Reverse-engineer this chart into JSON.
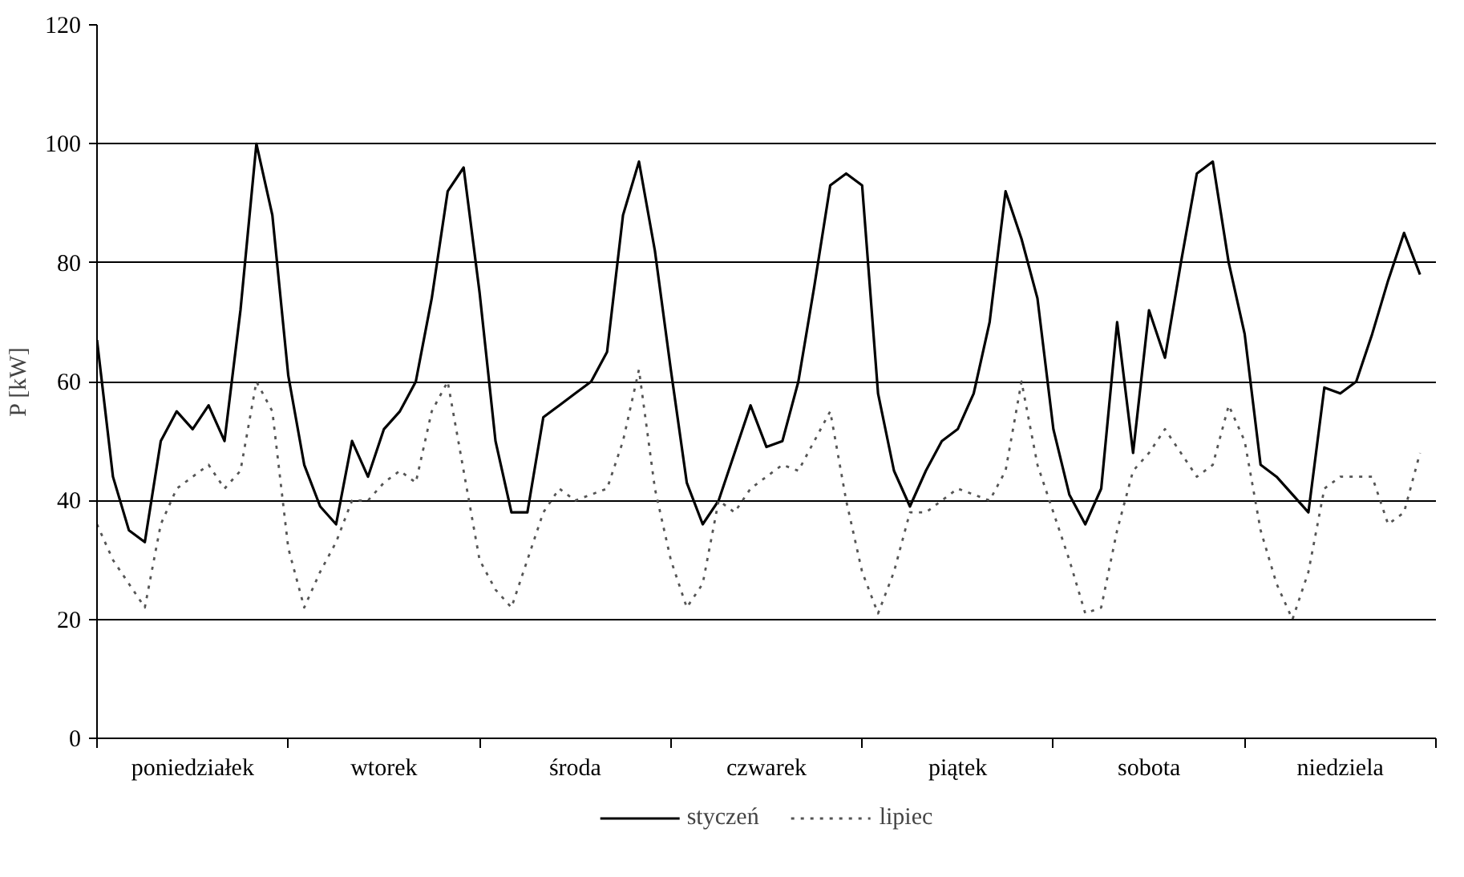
{
  "chart_data": {
    "type": "line",
    "ylabel": "P [kW]",
    "categories": [
      null,
      null,
      null,
      null,
      null,
      null,
      "poniedziałek",
      null,
      null,
      null,
      null,
      null,
      null,
      null,
      null,
      null,
      null,
      null,
      "wtorek",
      null,
      null,
      null,
      null,
      null,
      null,
      null,
      null,
      null,
      null,
      null,
      "środa",
      null,
      null,
      null,
      null,
      null,
      null,
      null,
      null,
      null,
      null,
      null,
      "czwarek",
      null,
      null,
      null,
      null,
      null,
      null,
      null,
      null,
      null,
      null,
      null,
      "piątek",
      null,
      null,
      null,
      null,
      null,
      null,
      null,
      null,
      null,
      null,
      null,
      "sobota",
      null,
      null,
      null,
      null,
      null,
      null,
      null,
      null,
      null,
      null,
      null,
      "niedziela",
      null,
      null,
      null,
      null,
      null
    ],
    "ylim": [
      0,
      120
    ],
    "yticks": [
      0,
      20,
      40,
      60,
      80,
      100,
      120
    ],
    "grid": "y",
    "legend": "bottom",
    "series": [
      {
        "name": "styczeń",
        "color": "#000000",
        "line_style": "solid",
        "values": [
          67,
          44,
          35,
          33,
          50,
          55,
          52,
          56,
          50,
          72,
          100,
          88,
          61,
          46,
          39,
          36,
          50,
          44,
          52,
          55,
          60,
          74,
          92,
          96,
          75,
          50,
          38,
          38,
          54,
          56,
          58,
          60,
          65,
          88,
          97,
          82,
          62,
          43,
          36,
          40,
          48,
          56,
          49,
          50,
          60,
          76,
          93,
          95,
          93,
          58,
          45,
          39,
          45,
          50,
          52,
          58,
          70,
          92,
          84,
          74,
          52,
          41,
          36,
          42,
          70,
          48,
          72,
          64,
          80,
          95,
          97,
          80,
          68,
          46,
          44,
          41,
          38,
          59,
          58,
          60,
          68,
          77,
          85,
          78
        ]
      },
      {
        "name": "lipiec",
        "color": "#555555",
        "line_style": "dotted",
        "values": [
          36,
          30,
          26,
          22,
          36,
          42,
          44,
          46,
          42,
          45,
          60,
          55,
          32,
          22,
          28,
          33,
          40,
          40,
          43,
          45,
          43,
          55,
          60,
          45,
          30,
          25,
          22,
          30,
          38,
          42,
          40,
          41,
          42,
          50,
          62,
          42,
          30,
          22,
          26,
          40,
          38,
          42,
          44,
          46,
          45,
          50,
          55,
          40,
          28,
          21,
          28,
          38,
          38,
          40,
          42,
          41,
          40,
          45,
          60,
          46,
          38,
          30,
          21,
          22,
          35,
          45,
          48,
          52,
          48,
          44,
          46,
          56,
          50,
          35,
          26,
          20,
          28,
          42,
          44,
          44,
          44,
          36,
          38,
          48
        ]
      }
    ]
  }
}
